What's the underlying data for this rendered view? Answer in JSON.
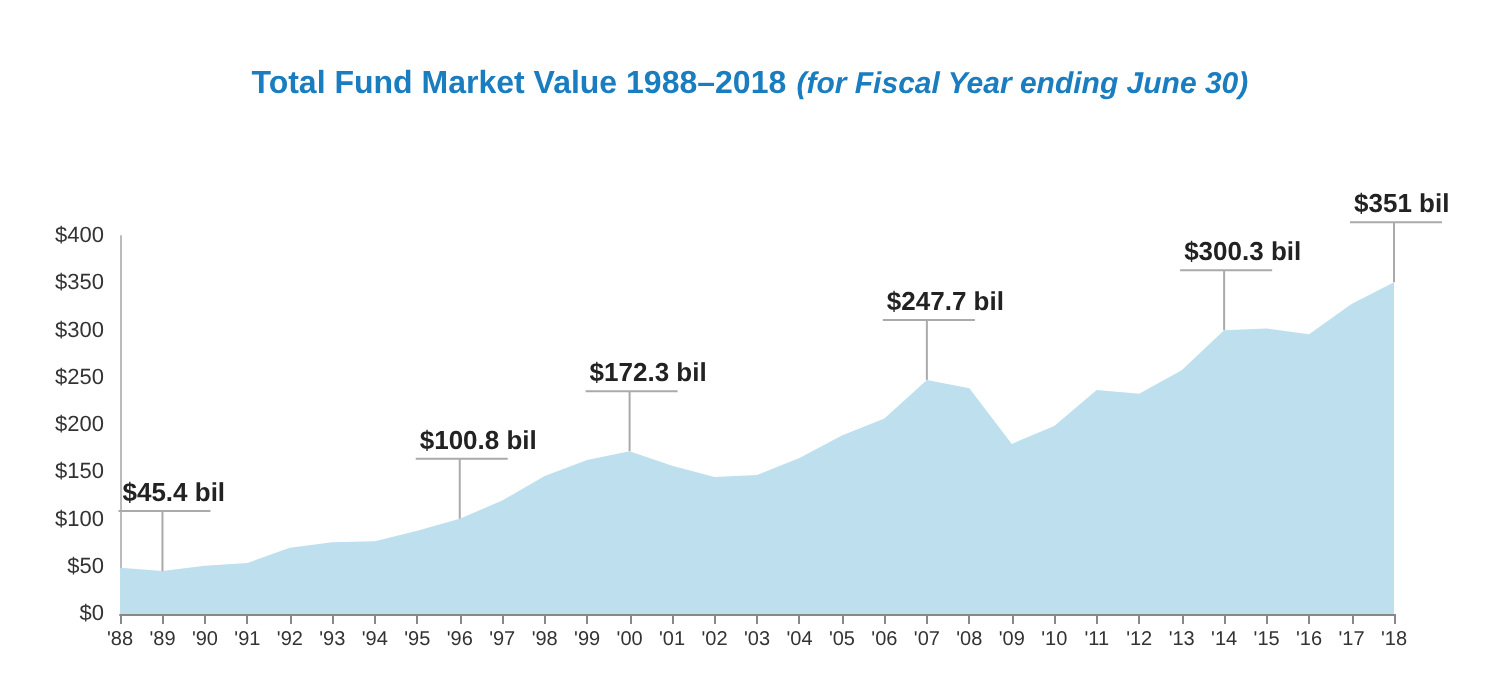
{
  "chart_data": {
    "type": "area",
    "title": "Total Fund Market Value 1988–2018",
    "subtitle": "(for Fiscal Year ending June 30)",
    "categories": [
      "'88",
      "'89",
      "'90",
      "'91",
      "'92",
      "'93",
      "'94",
      "'95",
      "'96",
      "'97",
      "'98",
      "'99",
      "'00",
      "'01",
      "'02",
      "'03",
      "'04",
      "'05",
      "'06",
      "'07",
      "'08",
      "'09",
      "'10",
      "'11",
      "'12",
      "'13",
      "'14",
      "'15",
      "'16",
      "'17",
      "'18"
    ],
    "series": [
      {
        "color": "#bddfee",
        "values": [
          49,
          45.4,
          51,
          54,
          70,
          76,
          77,
          88,
          100.8,
          120,
          146,
          163,
          172.3,
          157,
          145,
          147,
          165,
          189,
          207,
          247.7,
          239,
          180,
          199,
          237,
          233,
          258,
          300.3,
          302,
          296,
          328,
          351
        ]
      }
    ],
    "ylim": [
      0,
      400
    ],
    "yticks": [
      {
        "value": 0,
        "label": "$0"
      },
      {
        "value": 50,
        "label": "$50"
      },
      {
        "value": 100,
        "label": "$100"
      },
      {
        "value": 150,
        "label": "$150"
      },
      {
        "value": 200,
        "label": "$200"
      },
      {
        "value": 250,
        "label": "$250"
      },
      {
        "value": 300,
        "label": "$300"
      },
      {
        "value": 350,
        "label": "$350"
      },
      {
        "value": 400,
        "label": "$400"
      }
    ],
    "annotations": [
      {
        "text": "$45.4 bil",
        "x": "'89",
        "y": 45.4
      },
      {
        "text": "$100.8 bil",
        "x": "'96",
        "y": 100.8
      },
      {
        "text": "$172.3 bil",
        "x": "'00",
        "y": 172.3
      },
      {
        "text": "$247.7 bil",
        "x": "'07",
        "y": 247.7
      },
      {
        "text": "$300.3 bil",
        "x": "'14",
        "y": 300.3
      },
      {
        "text": "$351 bil",
        "x": "'18",
        "y": 351
      }
    ],
    "grid": false
  }
}
